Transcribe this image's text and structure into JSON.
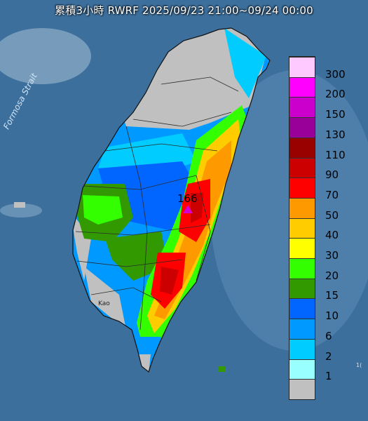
{
  "map": {
    "title": "累積3小時 RWRF 2025/09/23 21:00~09/24 00:00",
    "sea_label": "Formosa Strait",
    "max_value_label": "166",
    "place_label": "Kao",
    "corner_label": "1("
  },
  "legend": {
    "items": [
      {
        "label": "300",
        "color": "#fec9fe"
      },
      {
        "label": "200",
        "color": "#ff00ff"
      },
      {
        "label": "150",
        "color": "#cc00cc"
      },
      {
        "label": "130",
        "color": "#990099"
      },
      {
        "label": "110",
        "color": "#990000"
      },
      {
        "label": "90",
        "color": "#cc0000"
      },
      {
        "label": "70",
        "color": "#ff0000"
      },
      {
        "label": "50",
        "color": "#ff9900"
      },
      {
        "label": "40",
        "color": "#ffcc00"
      },
      {
        "label": "30",
        "color": "#ffff00"
      },
      {
        "label": "20",
        "color": "#33ff00"
      },
      {
        "label": "15",
        "color": "#339900"
      },
      {
        "label": "10",
        "color": "#0066ff"
      },
      {
        "label": "6",
        "color": "#0099ff"
      },
      {
        "label": "2",
        "color": "#00ccff"
      },
      {
        "label": "1",
        "color": "#99ffff"
      },
      {
        "label": "",
        "color": "#c0c0c0"
      }
    ]
  }
}
